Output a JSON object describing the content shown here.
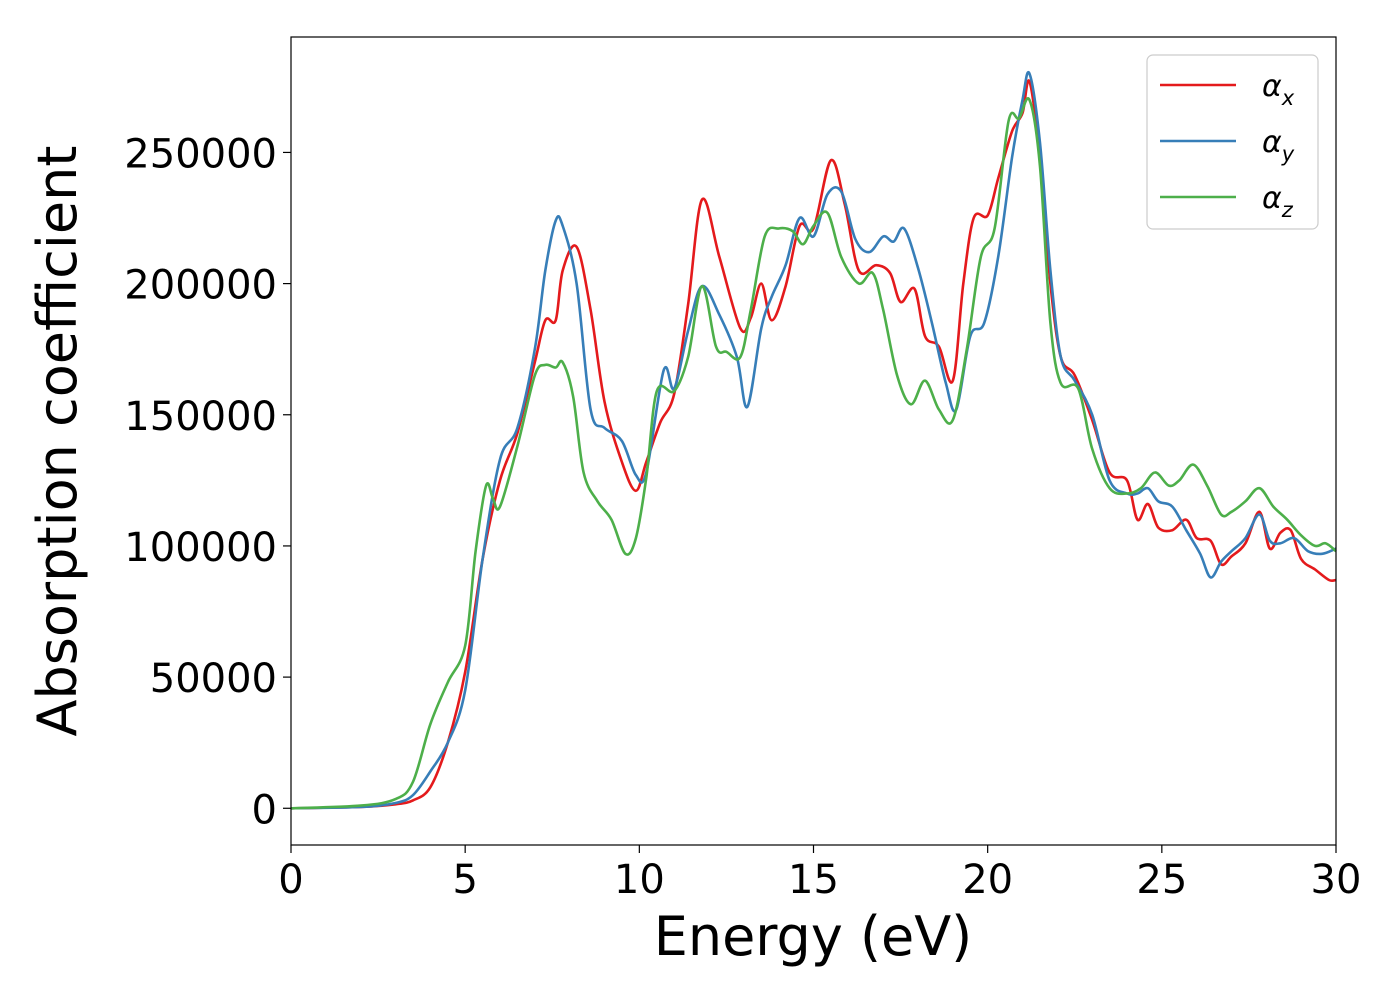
{
  "chart_data": {
    "type": "line",
    "title": "",
    "xlabel": "Energy (eV)",
    "ylabel": "Absorption coefficient",
    "xlim": [
      0,
      30
    ],
    "ylim": [
      -14000,
      294000
    ],
    "xticks": [
      0,
      5,
      10,
      15,
      20,
      25,
      30
    ],
    "xtick_labels": [
      "0",
      "5",
      "10",
      "15",
      "20",
      "25",
      "30"
    ],
    "yticks": [
      0,
      50000,
      100000,
      150000,
      200000,
      250000
    ],
    "ytick_labels": [
      "0",
      "50000",
      "100000",
      "150000",
      "200000",
      "250000"
    ],
    "grid": false,
    "legend_position": "top-right",
    "series": [
      {
        "name": "α_x",
        "symbol": "α",
        "subscript": "x",
        "color": "#e41a1c",
        "x": [
          0,
          2,
          3,
          3.5,
          4,
          4.5,
          5,
          5.5,
          6,
          6.5,
          7,
          7.3,
          7.6,
          7.8,
          8.2,
          8.6,
          9,
          9.5,
          9.9,
          10.2,
          10.6,
          11,
          11.4,
          11.8,
          12.3,
          12.9,
          13.2,
          13.5,
          13.8,
          14.2,
          14.6,
          15,
          15.5,
          15.9,
          16.3,
          16.8,
          17.2,
          17.5,
          17.9,
          18.2,
          18.6,
          19,
          19.3,
          19.6,
          20,
          20.3,
          20.7,
          21,
          21.2,
          21.5,
          21.8,
          22.1,
          22.5,
          23,
          23.5,
          24,
          24.3,
          24.6,
          24.9,
          25.3,
          25.7,
          26,
          26.4,
          26.7,
          27,
          27.4,
          27.8,
          28.1,
          28.4,
          28.7,
          29,
          29.4,
          29.8,
          30
        ],
        "y": [
          0,
          500,
          1500,
          3000,
          8000,
          25000,
          52000,
          95000,
          125000,
          143000,
          170000,
          186000,
          186000,
          205000,
          214000,
          190000,
          155000,
          132000,
          121000,
          132000,
          147000,
          158000,
          192000,
          232000,
          210000,
          183000,
          187000,
          200000,
          186000,
          199000,
          222000,
          221000,
          247000,
          230000,
          205000,
          207000,
          204000,
          193000,
          198000,
          180000,
          176000,
          163000,
          200000,
          225000,
          226000,
          240000,
          258000,
          265000,
          277000,
          248000,
          200000,
          172000,
          165000,
          148000,
          128000,
          125000,
          110000,
          116000,
          107000,
          106000,
          110000,
          103000,
          102000,
          93000,
          96000,
          101000,
          113000,
          99000,
          105000,
          106000,
          95000,
          91000,
          87000,
          87000
        ]
      },
      {
        "name": "α_y",
        "symbol": "α",
        "subscript": "y",
        "color": "#377eb8",
        "x": [
          0,
          2,
          3,
          3.5,
          4,
          4.5,
          5,
          5.5,
          6,
          6.5,
          7,
          7.3,
          7.6,
          7.8,
          8.2,
          8.6,
          9,
          9.5,
          9.9,
          10.2,
          10.7,
          11,
          11.4,
          11.8,
          12.3,
          12.8,
          13.1,
          13.5,
          13.8,
          14.2,
          14.6,
          15,
          15.4,
          15.8,
          16.2,
          16.6,
          17,
          17.3,
          17.6,
          18,
          18.4,
          18.8,
          19.1,
          19.5,
          19.9,
          20.3,
          20.7,
          21,
          21.2,
          21.5,
          21.8,
          22.1,
          22.5,
          23,
          23.5,
          24,
          24.3,
          24.6,
          24.9,
          25.3,
          25.7,
          26.1,
          26.4,
          26.7,
          27,
          27.4,
          27.8,
          28.1,
          28.4,
          28.8,
          29.2,
          29.6,
          30
        ],
        "y": [
          0,
          500,
          2000,
          5000,
          14000,
          25000,
          45000,
          95000,
          133000,
          145000,
          175000,
          205000,
          224000,
          222000,
          200000,
          152000,
          145000,
          140000,
          127000,
          128000,
          167000,
          160000,
          182000,
          199000,
          188000,
          172000,
          153000,
          183000,
          195000,
          207000,
          225000,
          218000,
          234000,
          235000,
          217000,
          212000,
          218000,
          216000,
          221000,
          206000,
          185000,
          162000,
          152000,
          180000,
          185000,
          210000,
          248000,
          270000,
          280000,
          254000,
          205000,
          172000,
          163000,
          150000,
          125000,
          120000,
          120000,
          122000,
          117000,
          115000,
          106000,
          97000,
          88000,
          94000,
          98000,
          103000,
          112000,
          102000,
          101000,
          103000,
          98000,
          97000,
          99000
        ]
      },
      {
        "name": "α_z",
        "symbol": "α",
        "subscript": "z",
        "color": "#4daf4a",
        "x": [
          0,
          2,
          3,
          3.5,
          4,
          4.5,
          5,
          5.3,
          5.6,
          5.8,
          6,
          6.5,
          7,
          7.3,
          7.6,
          7.8,
          8.1,
          8.4,
          8.8,
          9.2,
          9.6,
          9.9,
          10.2,
          10.5,
          11,
          11.4,
          11.8,
          12.2,
          12.5,
          12.9,
          13.2,
          13.6,
          14,
          14.4,
          14.7,
          15,
          15.4,
          15.8,
          16.3,
          16.7,
          17,
          17.4,
          17.8,
          18.2,
          18.6,
          19,
          19.4,
          19.8,
          20.2,
          20.6,
          20.9,
          21.2,
          21.5,
          21.8,
          22.1,
          22.6,
          23,
          23.5,
          24,
          24.4,
          24.8,
          25.2,
          25.5,
          25.9,
          26.3,
          26.7,
          27,
          27.4,
          27.8,
          28.2,
          28.6,
          29,
          29.4,
          29.7,
          30
        ],
        "y": [
          0,
          1000,
          3500,
          10000,
          32000,
          48000,
          62000,
          98000,
          123000,
          118000,
          115000,
          138000,
          165000,
          169000,
          168000,
          170000,
          157000,
          128000,
          117000,
          110000,
          97000,
          103000,
          126000,
          159000,
          159000,
          172000,
          199000,
          176000,
          174000,
          172000,
          190000,
          218000,
          221000,
          220000,
          215000,
          222000,
          227000,
          210000,
          200000,
          204000,
          190000,
          165000,
          154000,
          163000,
          152000,
          148000,
          175000,
          210000,
          221000,
          262000,
          263000,
          270000,
          245000,
          185000,
          162000,
          160000,
          137000,
          122000,
          120000,
          122000,
          128000,
          123000,
          125000,
          131000,
          123000,
          112000,
          113000,
          117000,
          122000,
          115000,
          110000,
          104000,
          100000,
          101000,
          98000
        ]
      }
    ]
  }
}
